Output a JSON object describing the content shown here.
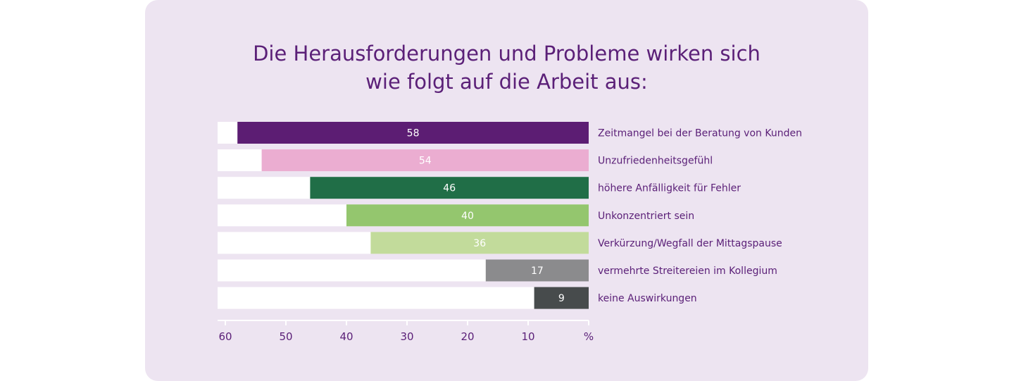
{
  "chart_data": {
    "type": "bar",
    "orientation": "horizontal",
    "title_lines": [
      "Die Herausforderungen und Probleme wirken sich",
      "wie folgt auf die Arbeit aus:"
    ],
    "categories": [
      "Zeitmangel bei der Beratung von Kunden",
      "Unzufriedenheitsgefühl",
      "höhere Anfälligkeit für Fehler",
      "Unkonzentriert sein",
      "Verkürzung/Wegfall der Mittagspause",
      "vermehrte Streitereien im Kollegium",
      "keine Auswirkungen"
    ],
    "values": [
      58,
      54,
      46,
      40,
      36,
      17,
      9
    ],
    "colors": [
      "#5c1d73",
      "#ebadd1",
      "#206e47",
      "#94c66e",
      "#c2db9b",
      "#8b8b8d",
      "#474b4c"
    ],
    "value_label_colors": [
      "#ffffff",
      "#ffffff",
      "#ffffff",
      "#ffffff",
      "#ffffff",
      "#ffffff",
      "#ffffff"
    ],
    "xlim": [
      0,
      60
    ],
    "x_direction": "reversed",
    "x_ticks": [
      60,
      50,
      40,
      30,
      20,
      10
    ],
    "x_unit_label": "%",
    "track_color": "#ffffff",
    "text_color": "#5b2078"
  }
}
